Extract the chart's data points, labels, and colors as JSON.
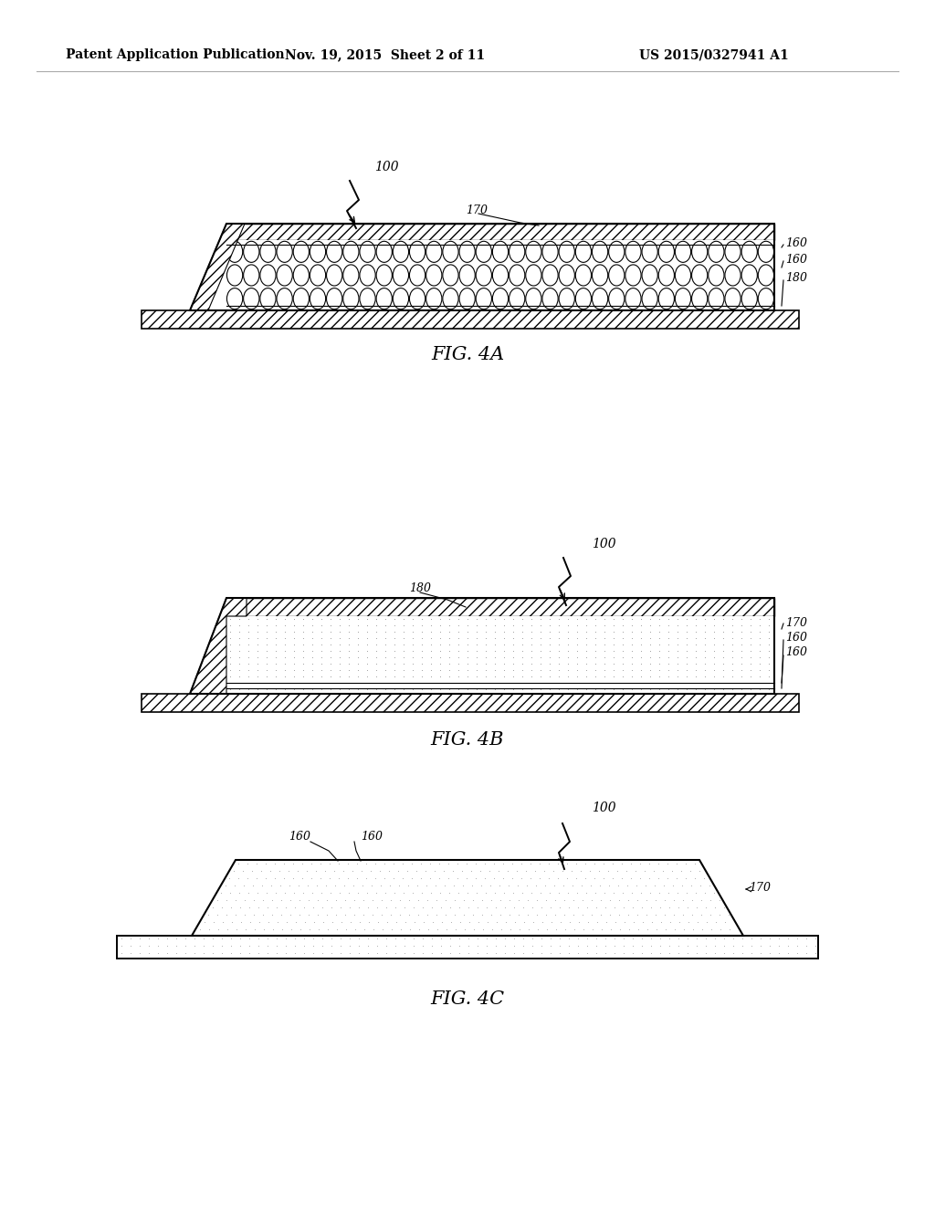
{
  "header_left": "Patent Application Publication",
  "header_mid": "Nov. 19, 2015  Sheet 2 of 11",
  "header_right": "US 2015/0327941 A1",
  "fig4a_label": "FIG. 4A",
  "fig4b_label": "FIG. 4B",
  "fig4c_label": "FIG. 4C",
  "bg_color": "#ffffff"
}
